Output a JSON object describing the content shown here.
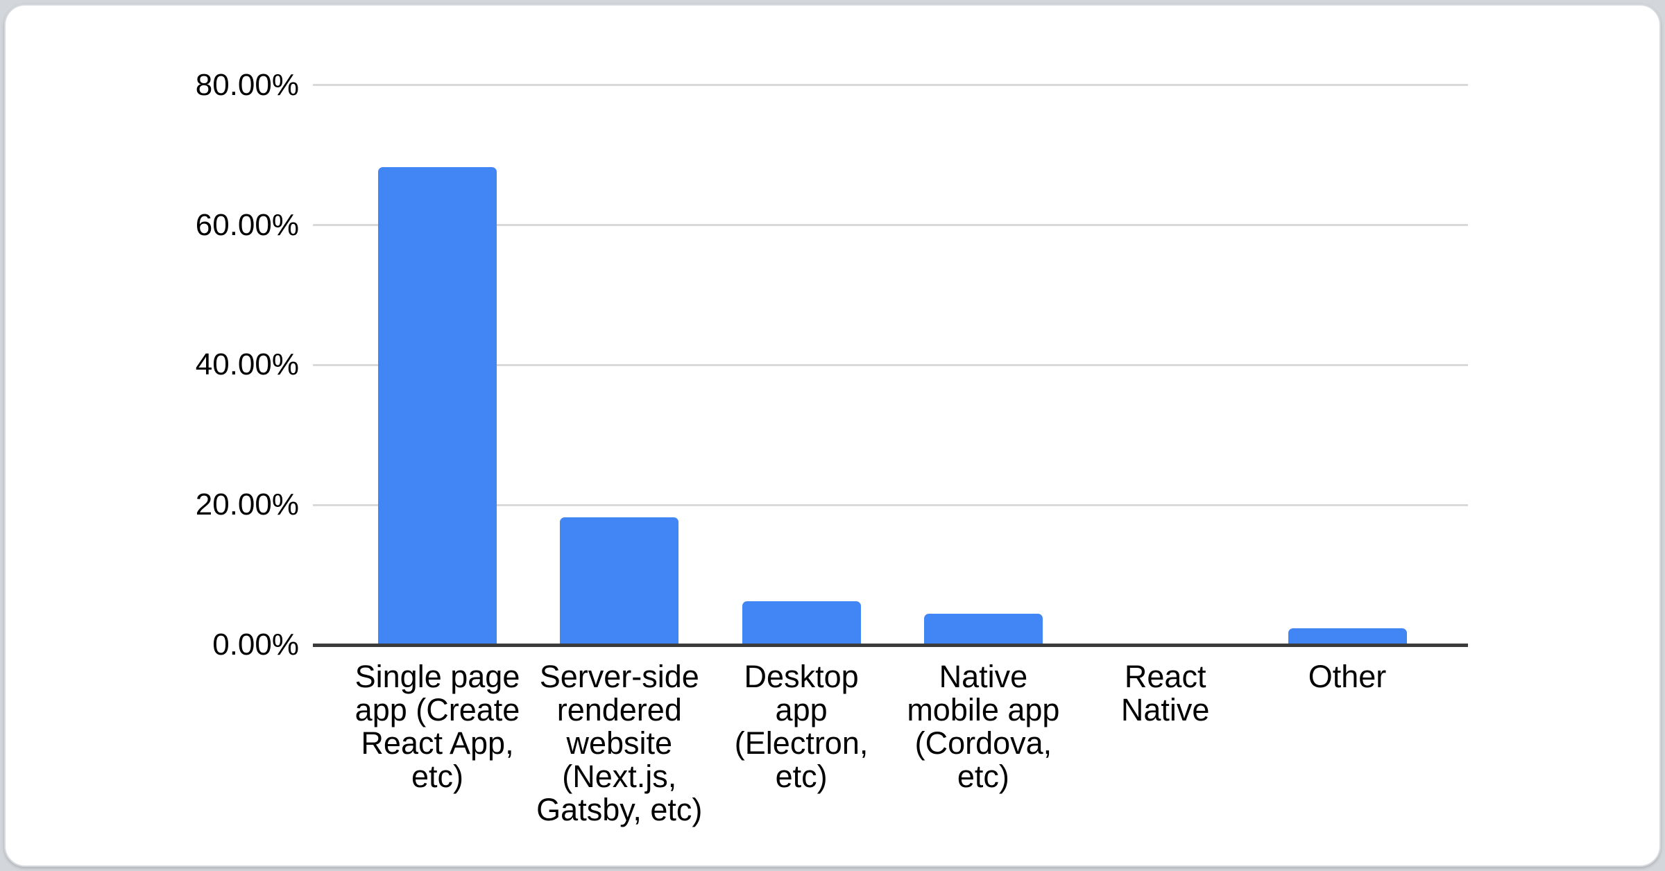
{
  "chart_data": {
    "type": "bar",
    "title": "",
    "xlabel": "",
    "ylabel": "",
    "legend": "none",
    "grid": true,
    "bar_color": "#4285f4",
    "background_color": "#ffffff",
    "ylim": [
      0,
      80
    ],
    "y_ticks": [
      {
        "label": "0.00%",
        "value": 0
      },
      {
        "label": "20.00%",
        "value": 20
      },
      {
        "label": "40.00%",
        "value": 40
      },
      {
        "label": "60.00%",
        "value": 60
      },
      {
        "label": "80.00%",
        "value": 80
      }
    ],
    "categories": [
      "Single page app (Create React App, etc)",
      "Server-side rendered website (Next.js, Gatsby, etc)",
      "Desktop app (Electron, etc)",
      "Native mobile app (Cordova, etc)",
      "React Native",
      "Other"
    ],
    "category_lines": [
      [
        "Single page",
        "app (Create",
        "React App,",
        "etc)"
      ],
      [
        "Server-side",
        "rendered",
        "website",
        "(Next.js,",
        "Gatsby, etc)"
      ],
      [
        "Desktop",
        "app",
        "(Electron,",
        "etc)"
      ],
      [
        "Native",
        "mobile app",
        "(Cordova,",
        "etc)"
      ],
      [
        "React",
        "Native"
      ],
      [
        "Other"
      ]
    ],
    "category_slugs": [
      "single-page-app",
      "server-side-rendered-website",
      "desktop-app",
      "native-mobile-app",
      "react-native",
      "other"
    ],
    "values": [
      68.3,
      18.2,
      6.2,
      4.5,
      0,
      2.4
    ]
  }
}
